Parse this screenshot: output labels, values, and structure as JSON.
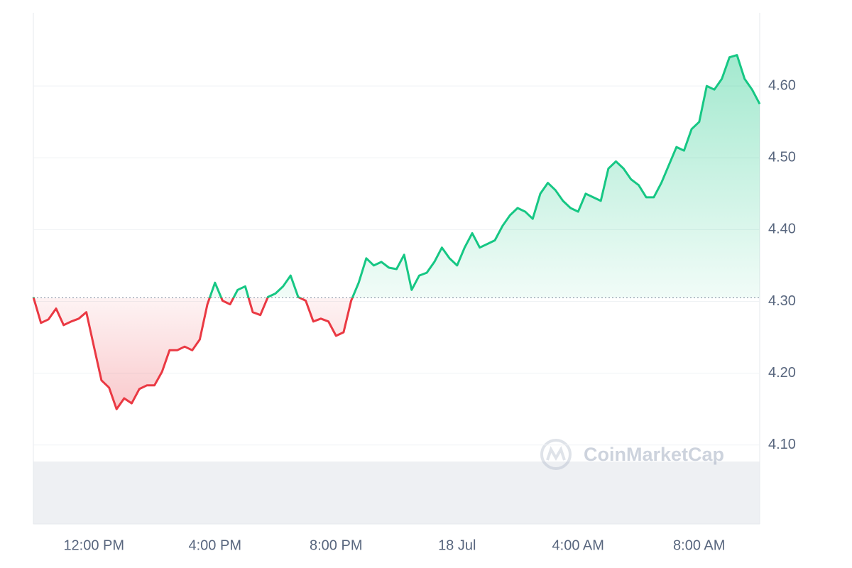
{
  "chart_data": {
    "type": "line",
    "watermark": "CoinMarketCap",
    "categories": [
      null,
      null,
      null,
      null,
      null,
      null,
      null,
      null,
      "12:00 PM",
      null,
      null,
      null,
      null,
      null,
      null,
      null,
      null,
      null,
      null,
      null,
      null,
      null,
      null,
      null,
      "4:00 PM",
      null,
      null,
      null,
      null,
      null,
      null,
      null,
      null,
      null,
      null,
      null,
      null,
      null,
      null,
      null,
      "8:00 PM",
      null,
      null,
      null,
      null,
      null,
      null,
      null,
      null,
      null,
      null,
      null,
      null,
      null,
      null,
      null,
      "18 Jul",
      null,
      null,
      null,
      null,
      null,
      null,
      null,
      null,
      null,
      null,
      null,
      null,
      null,
      null,
      null,
      "4:00 AM",
      null,
      null,
      null,
      null,
      null,
      null,
      null,
      null,
      null,
      null,
      null,
      null,
      null,
      null,
      null,
      "8:00 AM",
      null,
      null,
      null,
      null,
      null,
      null,
      null,
      null
    ],
    "values": [
      4.306,
      4.27,
      4.275,
      4.29,
      4.267,
      4.272,
      4.276,
      4.285,
      4.237,
      4.19,
      4.18,
      4.15,
      4.165,
      4.158,
      4.178,
      4.183,
      4.183,
      4.202,
      4.232,
      4.232,
      4.237,
      4.232,
      4.247,
      4.296,
      4.326,
      4.301,
      4.296,
      4.316,
      4.321,
      4.285,
      4.281,
      4.306,
      4.311,
      4.321,
      4.336,
      4.306,
      4.301,
      4.272,
      4.276,
      4.272,
      4.252,
      4.257,
      4.301,
      4.326,
      4.36,
      4.35,
      4.355,
      4.347,
      4.345,
      4.365,
      4.316,
      4.336,
      4.34,
      4.355,
      4.375,
      4.36,
      4.35,
      4.375,
      4.395,
      4.375,
      4.38,
      4.385,
      4.405,
      4.42,
      4.43,
      4.425,
      4.415,
      4.45,
      4.465,
      4.455,
      4.44,
      4.43,
      4.425,
      4.45,
      4.445,
      4.44,
      4.485,
      4.495,
      4.485,
      4.47,
      4.462,
      4.445,
      4.445,
      4.465,
      4.49,
      4.515,
      4.51,
      4.54,
      4.55,
      4.6,
      4.595,
      4.61,
      4.64,
      4.643,
      4.61,
      4.595,
      4.575
    ],
    "baseline": 4.305,
    "color_up": "#16c784",
    "color_down": "#ea3943",
    "ylim": [
      3.99,
      4.7
    ],
    "yticks": [
      {
        "value": 4.1,
        "label": "4.10"
      },
      {
        "value": 4.2,
        "label": "4.20"
      },
      {
        "value": 4.3,
        "label": "4.30"
      },
      {
        "value": 4.4,
        "label": "4.40"
      },
      {
        "value": 4.5,
        "label": "4.50"
      },
      {
        "value": 4.6,
        "label": "4.60"
      }
    ],
    "grid": true
  }
}
